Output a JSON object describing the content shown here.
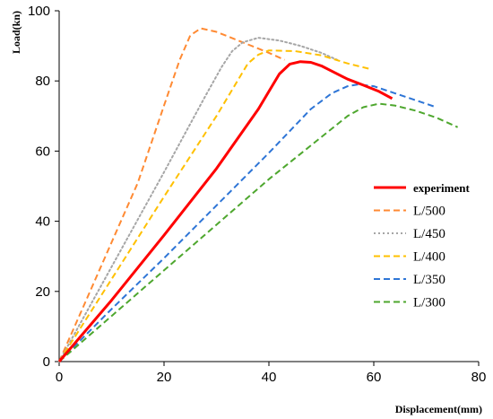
{
  "chart_data": {
    "type": "line",
    "title": "",
    "xlabel": "Displacement(mm)",
    "ylabel": "Load(kn)",
    "xlim": [
      0,
      80
    ],
    "ylim": [
      0,
      100
    ],
    "xticks": [
      "0",
      "20",
      "40",
      "60",
      "80"
    ],
    "yticks": [
      "0",
      "20",
      "40",
      "60",
      "80",
      "100"
    ],
    "grid": false,
    "legend_position": "right",
    "series": [
      {
        "name": "experiment",
        "color": "#ff0000",
        "style": "solid",
        "points": [
          [
            0,
            0
          ],
          [
            10,
            17.5
          ],
          [
            20,
            36
          ],
          [
            30,
            55
          ],
          [
            38,
            72
          ],
          [
            40,
            77
          ],
          [
            42,
            82
          ],
          [
            44,
            84.8
          ],
          [
            46,
            85.5
          ],
          [
            48,
            85.3
          ],
          [
            50,
            84.3
          ],
          [
            52,
            82.8
          ],
          [
            55,
            80.5
          ],
          [
            58,
            78.8
          ],
          [
            61,
            77
          ],
          [
            63.5,
            75
          ]
        ]
      },
      {
        "name": "L/500",
        "color": "#ff8a33",
        "style": "dashed",
        "points": [
          [
            0,
            0
          ],
          [
            5,
            17
          ],
          [
            10,
            34
          ],
          [
            15,
            51
          ],
          [
            20,
            73
          ],
          [
            23,
            86
          ],
          [
            25,
            93
          ],
          [
            27,
            95
          ],
          [
            30,
            94
          ],
          [
            35,
            91
          ],
          [
            40,
            88
          ],
          [
            43,
            86
          ]
        ]
      },
      {
        "name": "L/450",
        "color": "#a6a6a6",
        "style": "dotted",
        "points": [
          [
            0,
            0
          ],
          [
            10,
            27
          ],
          [
            20,
            54
          ],
          [
            28,
            76
          ],
          [
            31,
            84
          ],
          [
            33,
            88.5
          ],
          [
            35,
            91
          ],
          [
            38,
            92.3
          ],
          [
            42,
            91.5
          ],
          [
            46,
            90
          ],
          [
            50,
            88
          ],
          [
            53,
            86
          ]
        ]
      },
      {
        "name": "L/400",
        "color": "#ffc000",
        "style": "dashed",
        "points": [
          [
            0,
            0
          ],
          [
            10,
            23.5
          ],
          [
            20,
            47
          ],
          [
            30,
            70
          ],
          [
            34,
            80
          ],
          [
            36,
            85
          ],
          [
            38,
            87.5
          ],
          [
            40,
            88.7
          ],
          [
            45,
            88.5
          ],
          [
            50,
            87.3
          ],
          [
            55,
            85
          ],
          [
            59,
            83.5
          ]
        ]
      },
      {
        "name": "L/350",
        "color": "#2e75d6",
        "style": "dashed",
        "points": [
          [
            0,
            0
          ],
          [
            10,
            15
          ],
          [
            20,
            29.5
          ],
          [
            30,
            44.5
          ],
          [
            40,
            59.5
          ],
          [
            48,
            72
          ],
          [
            52,
            76.5
          ],
          [
            55,
            78.5
          ],
          [
            57,
            79
          ],
          [
            60,
            78.5
          ],
          [
            64,
            76.5
          ],
          [
            68,
            74.5
          ],
          [
            71.5,
            72.7
          ]
        ]
      },
      {
        "name": "L/300",
        "color": "#4ea72e",
        "style": "dashed",
        "points": [
          [
            0,
            0
          ],
          [
            10,
            13
          ],
          [
            20,
            26
          ],
          [
            30,
            39
          ],
          [
            40,
            52
          ],
          [
            50,
            64
          ],
          [
            55,
            70
          ],
          [
            58,
            72.5
          ],
          [
            61,
            73.5
          ],
          [
            64,
            73
          ],
          [
            68,
            71.5
          ],
          [
            72,
            69.5
          ],
          [
            76,
            66.8
          ]
        ]
      }
    ]
  }
}
